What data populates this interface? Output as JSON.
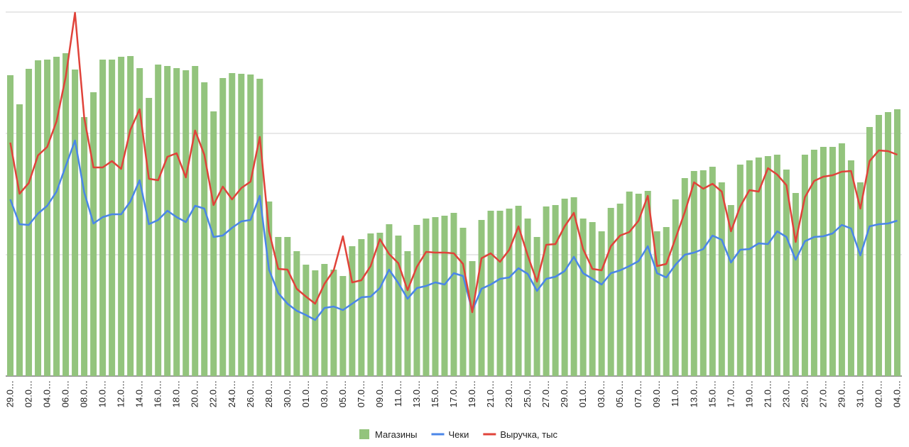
{
  "chart_data": {
    "type": "bar_line",
    "categories": [
      "29.0…",
      null,
      "02.0…",
      null,
      "04.0…",
      null,
      "06.0…",
      null,
      "08.0…",
      null,
      "10.0…",
      null,
      "12.0…",
      null,
      "14.0…",
      null,
      "16.0…",
      null,
      "18.0…",
      null,
      "20.0…",
      null,
      "22.0…",
      null,
      "24.0…",
      null,
      "26.0…",
      null,
      "28.0…",
      null,
      "30.0…",
      null,
      "01.0…",
      null,
      "03.0…",
      null,
      "05.0…",
      null,
      "07.0…",
      null,
      "09.0…",
      null,
      "11.0…",
      null,
      "13.0…",
      null,
      "15.0…",
      null,
      "17.0…",
      null,
      "19.0…",
      null,
      "21.0…",
      null,
      "23.0…",
      null,
      "25.0…",
      null,
      "27.0…",
      null,
      "29.0…",
      null,
      "01.0…",
      null,
      "03.0…",
      null,
      "05.0…",
      null,
      "07.0…",
      null,
      "09.0…",
      null,
      "11.0…",
      null,
      "13.0…",
      null,
      "15.0…",
      null,
      "17.0…",
      null,
      "19.0…",
      null,
      "21.0…",
      null,
      "23.0…",
      null,
      "25.0…",
      null,
      "27.0…",
      null,
      "29.0…",
      null,
      "31.0…",
      null,
      "02.0…",
      null,
      "04.0…"
    ],
    "series": [
      {
        "name": "Магазины",
        "kind": "bar",
        "color": "#93c47d",
        "values": [
          424,
          383,
          433,
          445,
          446,
          450,
          455,
          432,
          365,
          400,
          446,
          446,
          450,
          451,
          434,
          392,
          439,
          437,
          434,
          431,
          437,
          414,
          373,
          420,
          427,
          426,
          425,
          419,
          246,
          196,
          196,
          176,
          157,
          149,
          158,
          150,
          141,
          183,
          193,
          201,
          202,
          214,
          198,
          176,
          213,
          222,
          224,
          226,
          230,
          209,
          162,
          220,
          233,
          233,
          236,
          240,
          222,
          196,
          239,
          241,
          250,
          252,
          222,
          217,
          204,
          237,
          243,
          260,
          257,
          261,
          204,
          210,
          249,
          279,
          289,
          290,
          295,
          273,
          241,
          298,
          304,
          308,
          310,
          312,
          291,
          258,
          312,
          319,
          323,
          323,
          328,
          304,
          273,
          351,
          368,
          372,
          376
        ]
      },
      {
        "name": "Чеки",
        "kind": "line",
        "color": "#4a86e8",
        "values": [
          249,
          214,
          213,
          229,
          240,
          260,
          296,
          332,
          259,
          215,
          224,
          228,
          228,
          246,
          276,
          214,
          220,
          233,
          224,
          217,
          240,
          236,
          196,
          198,
          209,
          218,
          220,
          254,
          150,
          117,
          102,
          92,
          86,
          79,
          96,
          98,
          93,
          102,
          111,
          112,
          124,
          150,
          131,
          109,
          124,
          127,
          132,
          129,
          145,
          141,
          92,
          123,
          129,
          137,
          139,
          152,
          144,
          120,
          137,
          140,
          148,
          168,
          145,
          137,
          129,
          145,
          149,
          155,
          162,
          183,
          145,
          139,
          157,
          171,
          174,
          179,
          198,
          192,
          160,
          178,
          179,
          187,
          186,
          204,
          196,
          164,
          190,
          196,
          197,
          201,
          213,
          208,
          170,
          211,
          214,
          215,
          219
        ]
      },
      {
        "name": "Выручка, тыс",
        "kind": "line",
        "color": "#e0433a",
        "values": [
          329,
          257,
          272,
          311,
          323,
          359,
          422,
          512,
          364,
          294,
          294,
          303,
          292,
          347,
          376,
          278,
          276,
          309,
          314,
          280,
          346,
          312,
          241,
          267,
          249,
          265,
          274,
          337,
          204,
          151,
          150,
          123,
          112,
          102,
          130,
          149,
          197,
          132,
          135,
          155,
          193,
          172,
          159,
          121,
          154,
          175,
          174,
          174,
          173,
          158,
          90,
          166,
          173,
          161,
          178,
          211,
          170,
          133,
          185,
          186,
          211,
          230,
          179,
          151,
          149,
          183,
          198,
          203,
          219,
          254,
          155,
          158,
          194,
          231,
          273,
          264,
          271,
          260,
          204,
          239,
          262,
          260,
          293,
          284,
          269,
          189,
          252,
          275,
          281,
          283,
          288,
          289,
          236,
          303,
          318,
          317,
          312
        ]
      }
    ],
    "ylim": [
      0,
      513
    ],
    "gridlines": [
      171,
      342,
      513
    ],
    "grid": true,
    "legend": "bottom"
  }
}
